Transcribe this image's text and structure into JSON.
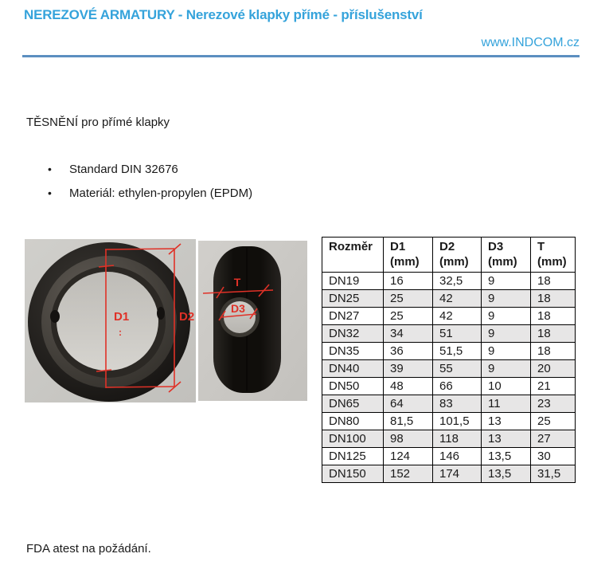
{
  "header": {
    "title": "NEREZOVÉ ARMATURY - Nerezové klapky přímé - příslušenství",
    "website": "www.INDCOM.cz"
  },
  "content": {
    "section_title": "TĚSNĚNÍ pro přímé klapky",
    "bullet_glyph": "•",
    "bullets": [
      "Standard DIN 32676",
      "Materiál: ethylen-propylen (EPDM)"
    ],
    "footer_note": "FDA atest na požádání."
  },
  "figure": {
    "front_view_labels": {
      "d1": "D1",
      "colon": ":",
      "d2": "D2"
    },
    "side_view_labels": {
      "t": "T",
      "d3": "D3"
    }
  },
  "table": {
    "headers": [
      {
        "name": "Rozměr",
        "unit": ""
      },
      {
        "name": "D1",
        "unit": "(mm)"
      },
      {
        "name": "D2",
        "unit": "(mm)"
      },
      {
        "name": "D3",
        "unit": "(mm)"
      },
      {
        "name": "T",
        "unit": "(mm)"
      }
    ],
    "rows": [
      {
        "dn": "DN19",
        "d1": "16",
        "d2": "32,5",
        "d3": "9",
        "t": "18"
      },
      {
        "dn": "DN25",
        "d1": "25",
        "d2": "42",
        "d3": "9",
        "t": "18"
      },
      {
        "dn": "DN27",
        "d1": "25",
        "d2": "42",
        "d3": "9",
        "t": "18"
      },
      {
        "dn": "DN32",
        "d1": "34",
        "d2": "51",
        "d3": "9",
        "t": "18"
      },
      {
        "dn": "DN35",
        "d1": "36",
        "d2": "51,5",
        "d3": "9",
        "t": "18"
      },
      {
        "dn": "DN40",
        "d1": "39",
        "d2": "55",
        "d3": "9",
        "t": "20"
      },
      {
        "dn": "DN50",
        "d1": "48",
        "d2": "66",
        "d3": "10",
        "t": "21"
      },
      {
        "dn": "DN65",
        "d1": "64",
        "d2": "83",
        "d3": "11",
        "t": "23"
      },
      {
        "dn": "DN80",
        "d1": "81,5",
        "d2": "101,5",
        "d3": "13",
        "t": "25"
      },
      {
        "dn": "DN100",
        "d1": "98",
        "d2": "118",
        "d3": "13",
        "t": "27"
      },
      {
        "dn": "DN125",
        "d1": "124",
        "d2": "146",
        "d3": "13,5",
        "t": "30"
      },
      {
        "dn": "DN150",
        "d1": "152",
        "d2": "174",
        "d3": "13,5",
        "t": "31,5"
      }
    ]
  },
  "colors": {
    "accent_blue": "#35A3DB",
    "divider_blue": "#5C8FC0",
    "stripe_gray": "#E7E6E6",
    "annotation_red": "#E03127"
  }
}
